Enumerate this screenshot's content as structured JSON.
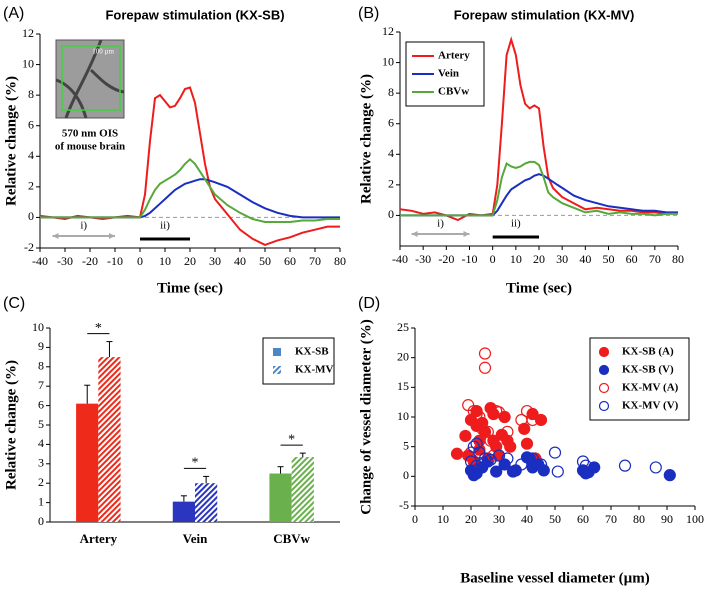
{
  "chart_data": [
    {
      "type": "line",
      "panel_label": "(A)",
      "title": "Forepaw stimulation (KX-SB)",
      "xlabel": "Time (sec)",
      "ylabel": "Relative change (%)",
      "x": [
        -40,
        -35,
        -30,
        -25,
        -20,
        -15,
        -10,
        -5,
        0,
        2,
        4,
        6,
        8,
        10,
        12,
        14,
        16,
        18,
        20,
        22,
        24,
        26,
        28,
        30,
        35,
        40,
        45,
        50,
        55,
        60,
        65,
        70,
        75,
        80
      ],
      "series": [
        {
          "name": "Artery",
          "color": "#ee1c1c",
          "values": [
            0.1,
            0,
            -0.1,
            0.1,
            0,
            -0.1,
            0,
            0.1,
            0,
            1.5,
            5,
            7.8,
            8.0,
            7.6,
            7.2,
            7.3,
            7.8,
            8.4,
            8.5,
            7.5,
            5.5,
            3.5,
            2,
            1.2,
            0.2,
            -0.8,
            -1.4,
            -1.8,
            -1.5,
            -1.3,
            -1.0,
            -0.8,
            -0.6,
            -0.6
          ]
        },
        {
          "name": "Vein",
          "color": "#1a2fc0",
          "values": [
            0,
            0,
            0,
            0,
            0,
            0,
            0,
            0,
            0,
            0.1,
            0.3,
            0.6,
            0.9,
            1.2,
            1.5,
            1.8,
            2.0,
            2.2,
            2.3,
            2.4,
            2.5,
            2.5,
            2.4,
            2.3,
            2.0,
            1.5,
            1.0,
            0.6,
            0.3,
            0.1,
            0,
            0,
            0,
            0
          ]
        },
        {
          "name": "CBVw",
          "color": "#56a83a",
          "values": [
            0,
            0,
            0,
            0,
            0,
            0,
            0,
            0,
            0,
            0.5,
            1.2,
            1.8,
            2.2,
            2.4,
            2.6,
            2.8,
            3.1,
            3.5,
            3.8,
            3.5,
            3.0,
            2.5,
            2.0,
            1.5,
            0.8,
            0.3,
            -0.1,
            -0.3,
            -0.3,
            -0.3,
            -0.2,
            -0.2,
            -0.1,
            -0.1
          ]
        }
      ],
      "xlim": [
        -40,
        80
      ],
      "xticks": [
        -40,
        -30,
        -20,
        -10,
        0,
        10,
        20,
        30,
        40,
        50,
        60,
        70,
        80
      ],
      "ylim": [
        -2,
        12
      ],
      "yticks": [
        -2,
        0,
        2,
        4,
        6,
        8,
        10,
        12
      ],
      "reference_line": 0,
      "periods": [
        {
          "label": "i)",
          "start": -35,
          "end": -10,
          "color": "#aaaaaa"
        },
        {
          "label": "ii)",
          "start": 0,
          "end": 20,
          "color": "#000000"
        }
      ],
      "inset": {
        "scale": "100 µm",
        "caption": [
          "570 nm OIS",
          "of mouse brain"
        ]
      }
    },
    {
      "type": "line",
      "panel_label": "(B)",
      "title": "Forepaw stimulation (KX-MV)",
      "xlabel": "Time (sec)",
      "ylabel": "Relative change (%)",
      "x": [
        -40,
        -35,
        -30,
        -25,
        -20,
        -15,
        -10,
        -5,
        0,
        2,
        4,
        6,
        8,
        10,
        12,
        14,
        16,
        18,
        20,
        22,
        24,
        26,
        28,
        30,
        35,
        40,
        45,
        50,
        55,
        60,
        65,
        70,
        75,
        80
      ],
      "series": [
        {
          "name": "Artery",
          "color": "#ee1c1c",
          "values": [
            0.4,
            0.3,
            0.1,
            0.2,
            0,
            -0.3,
            0.1,
            0,
            0.1,
            2,
            6,
            10.5,
            11.5,
            10.5,
            8.5,
            7.3,
            7.0,
            7.2,
            7.0,
            4.5,
            2.5,
            1.8,
            1.5,
            1.2,
            0.8,
            0.4,
            0.5,
            0.4,
            0.3,
            0.3,
            0.2,
            0.2,
            0.1,
            0.2
          ]
        },
        {
          "name": "Vein",
          "color": "#1a2fc0",
          "values": [
            0,
            0,
            0,
            0,
            0,
            0,
            0,
            0,
            0,
            0.3,
            0.8,
            1.3,
            1.7,
            1.9,
            2.1,
            2.3,
            2.4,
            2.6,
            2.7,
            2.6,
            2.4,
            2.2,
            2.0,
            1.8,
            1.3,
            1.0,
            0.8,
            0.6,
            0.5,
            0.4,
            0.3,
            0.3,
            0.2,
            0.2
          ]
        },
        {
          "name": "CBVw",
          "color": "#56a83a",
          "values": [
            0,
            0,
            0,
            0,
            0,
            0,
            0,
            0,
            0,
            1,
            2.5,
            3.4,
            3.2,
            3.1,
            3.2,
            3.4,
            3.5,
            3.5,
            3.3,
            2.5,
            1.5,
            1.2,
            1.0,
            0.8,
            0.5,
            0.2,
            0.3,
            0.1,
            0.2,
            0.1,
            0.1,
            0,
            0.1,
            0.1
          ]
        }
      ],
      "xlim": [
        -40,
        80
      ],
      "xticks": [
        -40,
        -30,
        -20,
        -10,
        0,
        10,
        20,
        30,
        40,
        50,
        60,
        70,
        80
      ],
      "ylim": [
        -2,
        12
      ],
      "yticks": [
        0,
        2,
        4,
        6,
        8,
        10,
        12
      ],
      "reference_line": 0,
      "legend": "upper left",
      "periods": [
        {
          "label": "i)",
          "start": -35,
          "end": -10,
          "color": "#aaaaaa"
        },
        {
          "label": "ii)",
          "start": 0,
          "end": 20,
          "color": "#000000"
        }
      ]
    },
    {
      "type": "bar",
      "panel_label": "(C)",
      "ylabel": "Relative change (%)",
      "categories": [
        "Artery",
        "Vein",
        "CBVw"
      ],
      "category_colors": [
        "#ee2a1a",
        "#2a35c0",
        "#6ab04c"
      ],
      "legend_color": "#4a86c8",
      "series": [
        {
          "name": "KX-SB",
          "pattern": "solid",
          "values": [
            6.1,
            1.05,
            2.5
          ],
          "errors": [
            0.95,
            0.3,
            0.35
          ]
        },
        {
          "name": "KX-MV",
          "pattern": "hatched",
          "values": [
            8.5,
            2.0,
            3.35
          ],
          "errors": [
            0.8,
            0.35,
            0.2
          ]
        }
      ],
      "significance": [
        "*",
        "*",
        "*"
      ],
      "ylim": [
        0,
        10
      ],
      "yticks": [
        0,
        1,
        2,
        3,
        4,
        5,
        6,
        7,
        8,
        9,
        10
      ],
      "legend": "upper right"
    },
    {
      "type": "scatter",
      "panel_label": "(D)",
      "xlabel": "Baseline vessel diameter (µm)",
      "ylabel": "Change of vessel diameter (%)",
      "series": [
        {
          "name": "KX-SB (A)",
          "color": "#ee1c1c",
          "filled": true,
          "x": [
            15,
            18,
            19,
            20,
            21,
            22,
            22,
            23,
            23,
            24,
            25,
            26,
            27,
            28,
            28,
            29,
            30,
            31,
            32,
            33,
            34,
            39,
            40,
            42,
            43,
            45
          ],
          "values": [
            3.8,
            6.8,
            3.5,
            9.5,
            2.5,
            11,
            8.5,
            6,
            4.5,
            9,
            7.5,
            3,
            11.5,
            10.5,
            6,
            5,
            3.5,
            7,
            10,
            6,
            5,
            8,
            5.5,
            10.5,
            3,
            9.5
          ]
        },
        {
          "name": "KX-SB (V)",
          "color": "#1a2fc0",
          "filled": true,
          "x": [
            20,
            21,
            22,
            24,
            26,
            29,
            32,
            35,
            36,
            40,
            41,
            42,
            44,
            46,
            60,
            61,
            62,
            64,
            91
          ],
          "values": [
            1.0,
            0.2,
            0.5,
            1.5,
            2.5,
            0.8,
            2,
            0.8,
            1,
            3.2,
            3,
            1.5,
            2,
            1,
            1,
            0.5,
            0.7,
            1.5,
            0.2
          ]
        },
        {
          "name": "KX-MV (A)",
          "color": "#ee1c1c",
          "filled": false,
          "x": [
            19,
            20,
            21,
            22,
            23,
            24,
            25,
            25,
            26,
            27,
            28,
            29,
            30,
            33,
            38,
            40,
            42
          ],
          "values": [
            12,
            4,
            11,
            10.5,
            10,
            8,
            20.7,
            18.3,
            7.5,
            6,
            3.5,
            11,
            10.8,
            7.5,
            9.5,
            11,
            9.5
          ]
        },
        {
          "name": "KX-MV (V)",
          "color": "#1a2fc0",
          "filled": false,
          "x": [
            20,
            21,
            22,
            22,
            23,
            24,
            25,
            27,
            30,
            33,
            38,
            42,
            45,
            50,
            51,
            60,
            61,
            75,
            86
          ],
          "values": [
            2.5,
            5,
            5.5,
            1.8,
            4,
            2,
            3,
            2.8,
            3.5,
            3,
            2,
            3,
            2,
            4,
            0.8,
            2.5,
            1.8,
            1.8,
            1.5
          ]
        }
      ],
      "xlim": [
        0,
        100
      ],
      "xticks": [
        0,
        10,
        20,
        30,
        40,
        50,
        60,
        70,
        80,
        90,
        100
      ],
      "ylim": [
        -5,
        25
      ],
      "yticks": [
        -5,
        0,
        5,
        10,
        15,
        20,
        25
      ],
      "legend": "upper right"
    }
  ]
}
